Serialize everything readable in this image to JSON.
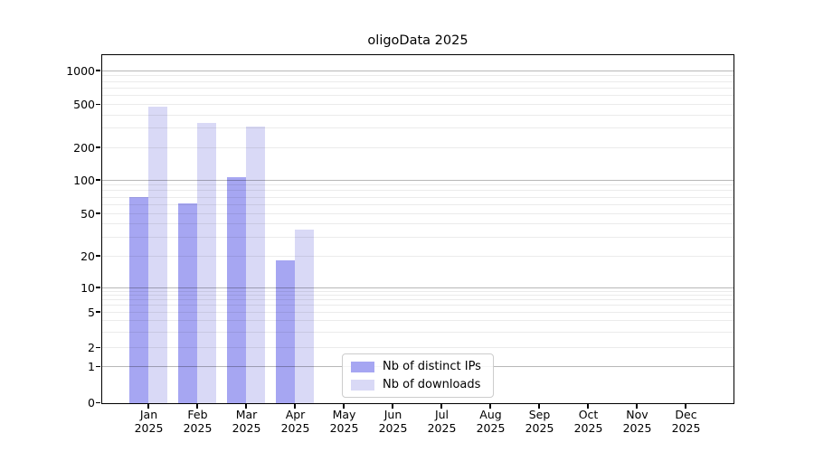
{
  "chart_data": {
    "type": "bar",
    "title": "oligoData 2025",
    "year": "2025",
    "categories": [
      "Jan",
      "Feb",
      "Mar",
      "Apr",
      "May",
      "Jun",
      "Jul",
      "Aug",
      "Sep",
      "Oct",
      "Nov",
      "Dec"
    ],
    "series": [
      {
        "name": "Nb of distinct IPs",
        "color": "#a6a6f2",
        "values": [
          70,
          61,
          105,
          18,
          0,
          0,
          0,
          0,
          0,
          0,
          0,
          0
        ]
      },
      {
        "name": "Nb of downloads",
        "color": "#d9d9f6",
        "values": [
          480,
          340,
          310,
          35,
          0,
          0,
          0,
          0,
          0,
          0,
          0,
          0
        ]
      }
    ],
    "yscale": "log",
    "yticks": [
      0,
      1,
      2,
      5,
      10,
      20,
      50,
      100,
      200,
      500,
      1000
    ],
    "ylim": [
      0,
      1300
    ],
    "xlabel": "",
    "ylabel": "",
    "grid": "horizontal",
    "legend_position": "inside-bottom-center"
  }
}
